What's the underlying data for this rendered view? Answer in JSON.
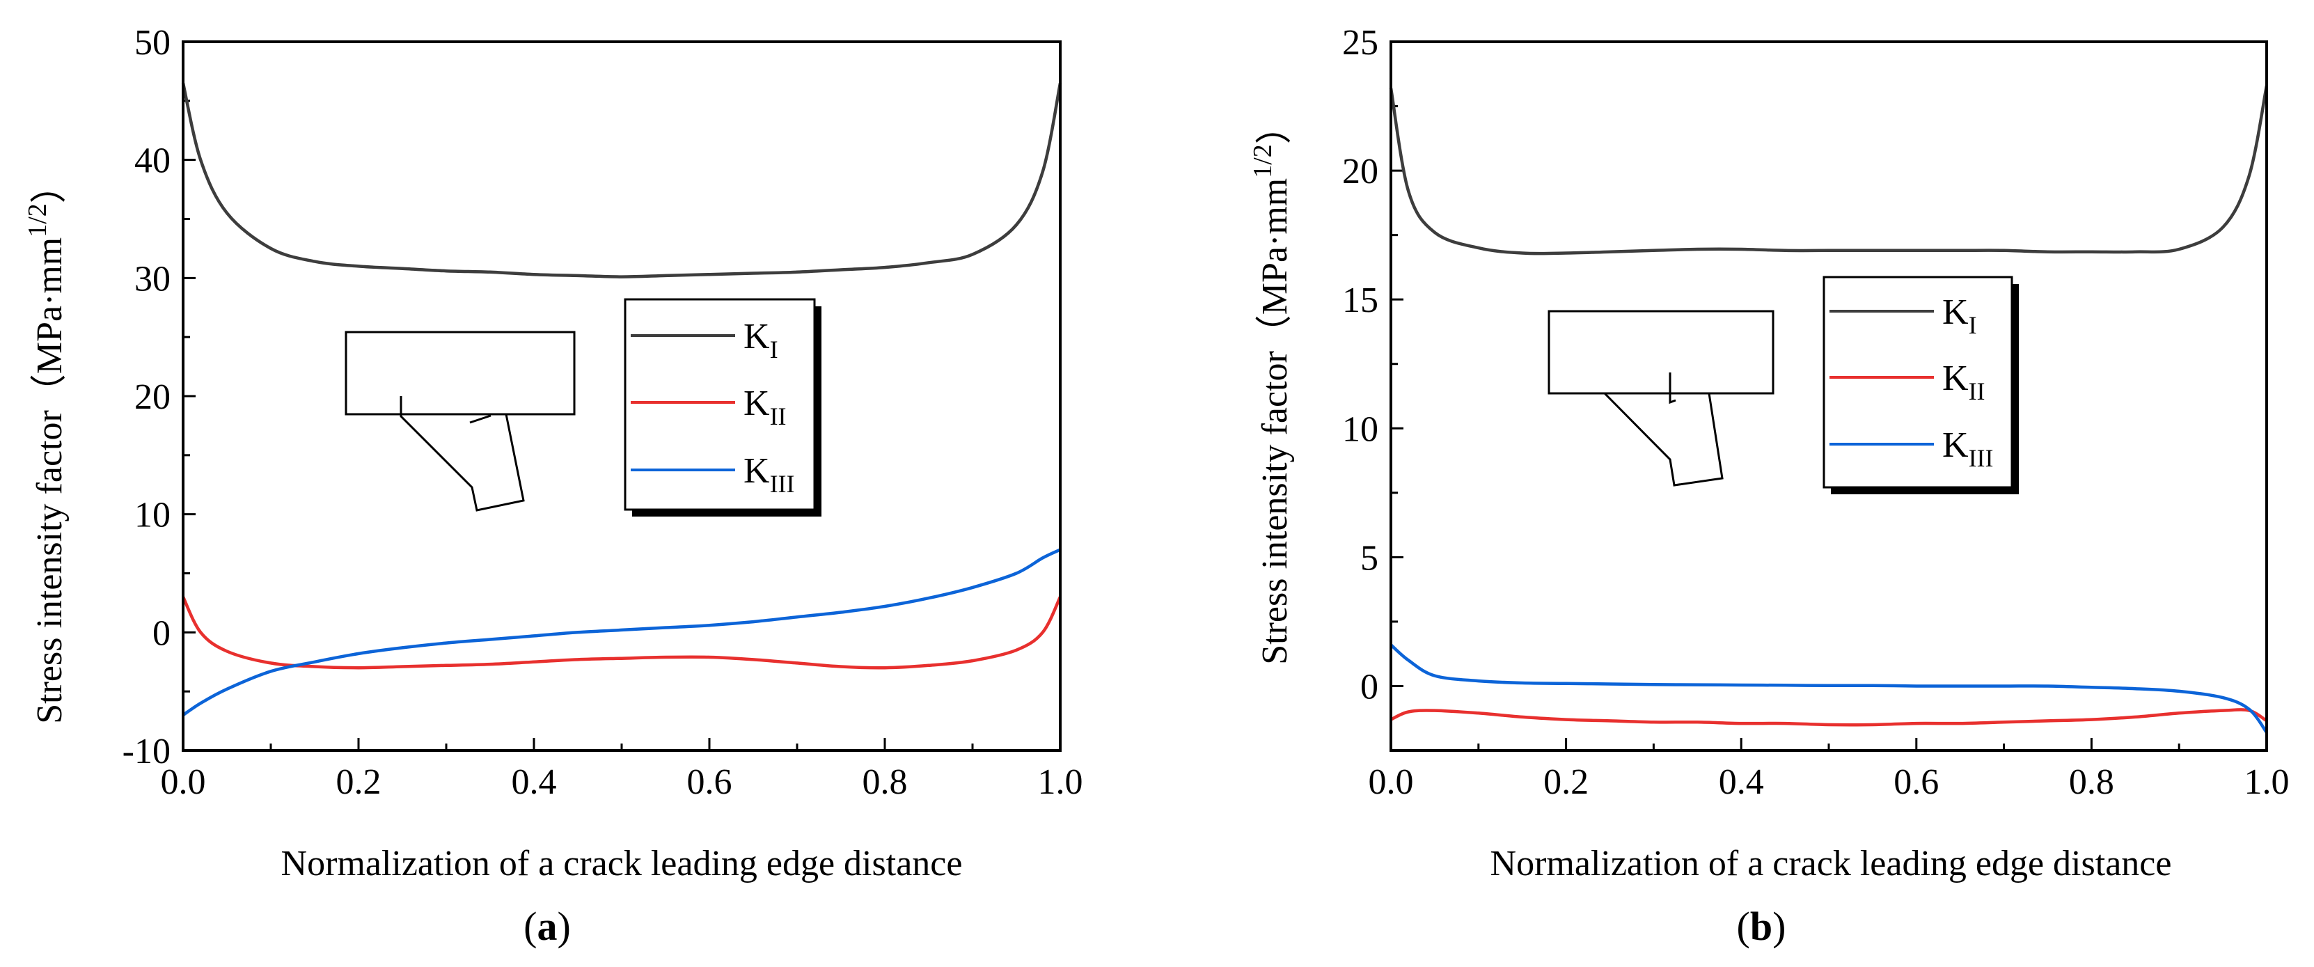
{
  "chart_data": [
    {
      "type": "line",
      "panel_label": "(a)",
      "panel_letter": "a",
      "xlabel": "Normalization of a crack leading edge distance",
      "ylabel_main": "Stress intensity factor（MPa·mm",
      "ylabel_sup": "1/2",
      "ylabel_close": "）",
      "xlim": [
        0.0,
        1.0
      ],
      "ylim": [
        -10,
        50
      ],
      "xticks": [
        0.0,
        0.2,
        0.4,
        0.6,
        0.8,
        1.0
      ],
      "xtick_labels": [
        "0.0",
        "0.2",
        "0.4",
        "0.6",
        "0.8",
        "1.0"
      ],
      "yticks": [
        -10,
        0,
        10,
        20,
        30,
        40,
        50
      ],
      "ytick_labels": [
        "-10",
        "0",
        "10",
        "20",
        "30",
        "40",
        "50"
      ],
      "legend_position": "center-right",
      "x": [
        0.0,
        0.02,
        0.05,
        0.1,
        0.15,
        0.2,
        0.25,
        0.3,
        0.35,
        0.4,
        0.45,
        0.5,
        0.55,
        0.6,
        0.65,
        0.7,
        0.75,
        0.8,
        0.85,
        0.9,
        0.95,
        0.98,
        1.0
      ],
      "series": [
        {
          "name": "K_I",
          "label_base": "K",
          "label_sub": "I",
          "color": "#3d3d3d",
          "values": [
            46.5,
            40.0,
            35.5,
            32.5,
            31.4,
            31.0,
            30.8,
            30.6,
            30.5,
            30.3,
            30.2,
            30.1,
            30.2,
            30.3,
            30.4,
            30.5,
            30.7,
            30.9,
            31.3,
            32.0,
            34.5,
            39.0,
            46.5
          ]
        },
        {
          "name": "K_II",
          "label_base": "K",
          "label_sub": "II",
          "color": "#e8302e",
          "values": [
            3.0,
            0.0,
            -1.6,
            -2.6,
            -2.9,
            -3.0,
            -2.9,
            -2.8,
            -2.7,
            -2.5,
            -2.3,
            -2.2,
            -2.1,
            -2.1,
            -2.3,
            -2.6,
            -2.9,
            -3.0,
            -2.8,
            -2.4,
            -1.5,
            0.0,
            3.0
          ]
        },
        {
          "name": "K_III",
          "label_base": "K",
          "label_sub": "III",
          "color": "#0c64d8",
          "values": [
            -7.0,
            -6.0,
            -4.8,
            -3.3,
            -2.5,
            -1.8,
            -1.3,
            -0.9,
            -0.6,
            -0.3,
            0.0,
            0.2,
            0.4,
            0.6,
            0.9,
            1.3,
            1.7,
            2.2,
            2.9,
            3.8,
            5.0,
            6.3,
            7.0
          ]
        }
      ]
    },
    {
      "type": "line",
      "panel_label": "(b)",
      "panel_letter": "b",
      "xlabel": "Normalization of a crack leading edge distance",
      "ylabel_main": "Stress intensity factor（MPa·mm",
      "ylabel_sup": "1/2",
      "ylabel_close": "）",
      "xlim": [
        0.0,
        1.0
      ],
      "ylim": [
        -2.5,
        25
      ],
      "xticks": [
        0.0,
        0.2,
        0.4,
        0.6,
        0.8,
        1.0
      ],
      "xtick_labels": [
        "0.0",
        "0.2",
        "0.4",
        "0.6",
        "0.8",
        "1.0"
      ],
      "yticks": [
        0,
        5,
        10,
        15,
        20,
        25
      ],
      "ytick_labels": [
        "0",
        "5",
        "10",
        "15",
        "20",
        "25"
      ],
      "legend_position": "center-right",
      "x": [
        0.0,
        0.02,
        0.05,
        0.1,
        0.15,
        0.2,
        0.25,
        0.3,
        0.35,
        0.4,
        0.45,
        0.5,
        0.55,
        0.6,
        0.65,
        0.7,
        0.75,
        0.8,
        0.85,
        0.9,
        0.95,
        0.98,
        1.0
      ],
      "series": [
        {
          "name": "K_I",
          "label_base": "K",
          "label_sub": "I",
          "color": "#3d3d3d",
          "values": [
            23.2,
            19.2,
            17.6,
            17.0,
            16.8,
            16.8,
            16.85,
            16.9,
            16.95,
            16.95,
            16.9,
            16.9,
            16.9,
            16.9,
            16.9,
            16.9,
            16.85,
            16.85,
            16.85,
            16.95,
            17.8,
            19.8,
            23.3
          ]
        },
        {
          "name": "K_II",
          "label_base": "K",
          "label_sub": "II",
          "color": "#e8302e",
          "values": [
            -1.3,
            -1.0,
            -0.95,
            -1.05,
            -1.2,
            -1.3,
            -1.35,
            -1.4,
            -1.4,
            -1.45,
            -1.45,
            -1.5,
            -1.5,
            -1.45,
            -1.45,
            -1.4,
            -1.35,
            -1.3,
            -1.2,
            -1.05,
            -0.95,
            -0.95,
            -1.35
          ]
        },
        {
          "name": "K_III",
          "label_base": "K",
          "label_sub": "III",
          "color": "#0c64d8",
          "values": [
            1.6,
            1.0,
            0.4,
            0.2,
            0.12,
            0.1,
            0.08,
            0.06,
            0.05,
            0.04,
            0.03,
            0.02,
            0.02,
            0.0,
            0.0,
            0.0,
            0.0,
            -0.05,
            -0.1,
            -0.2,
            -0.45,
            -0.9,
            -1.8
          ]
        }
      ]
    }
  ]
}
